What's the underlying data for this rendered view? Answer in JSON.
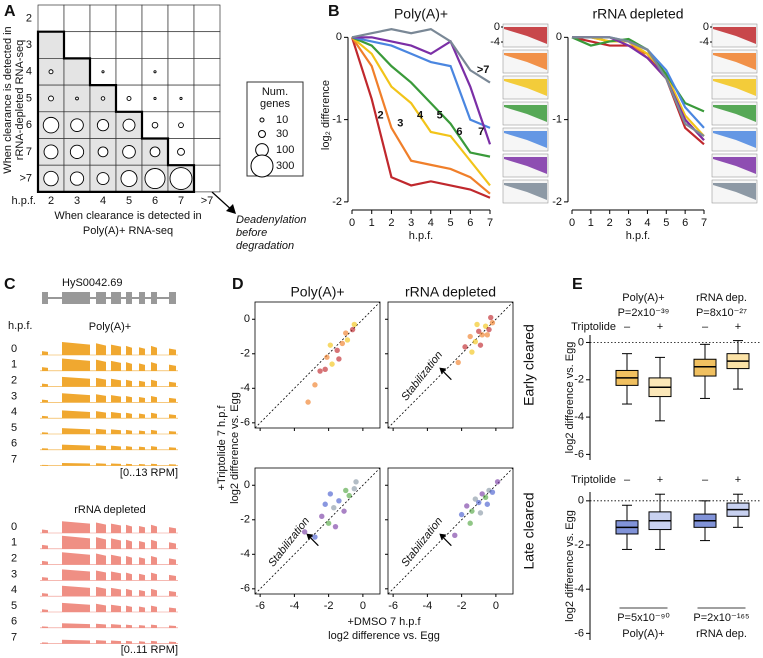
{
  "panel_a": {
    "letter": "A",
    "rows": [
      2,
      3,
      4,
      5,
      6,
      7,
      ">7"
    ],
    "cols": [
      2,
      3,
      4,
      5,
      6,
      7,
      ">7"
    ],
    "corner": "h.p.f.",
    "y_label": [
      "When clearance is detected in",
      "rRNA-depleted RNA-seq"
    ],
    "x_label": [
      "When clearance is detected in",
      "Poly(A)+ RNA-seq"
    ],
    "counts": [
      [
        null,
        null,
        null,
        null,
        null,
        null,
        null
      ],
      [
        null,
        null,
        null,
        null,
        null,
        null,
        null
      ],
      [
        10,
        null,
        3,
        null,
        3,
        null,
        null
      ],
      [
        15,
        5,
        8,
        10,
        3,
        3,
        null
      ],
      [
        150,
        100,
        80,
        90,
        20,
        15,
        null
      ],
      [
        120,
        110,
        60,
        100,
        60,
        30,
        null
      ],
      [
        130,
        110,
        90,
        160,
        250,
        300,
        null
      ]
    ],
    "legend_title": [
      "Num.",
      "genes"
    ],
    "legend_sizes": [
      10,
      30,
      100,
      300
    ],
    "annotation": [
      "Deadenylation",
      "before",
      "degradation"
    ]
  },
  "panel_b": {
    "letter": "B",
    "x_label": "h.p.f.",
    "y_label": "log₂ difference",
    "inset_ticks": [
      0,
      -4
    ],
    "charts": [
      {
        "title": "Poly(A)+",
        "x": [
          0,
          1,
          2,
          3,
          4,
          5,
          6,
          7
        ],
        "xlim": [
          0,
          7
        ],
        "xticks": [
          0,
          1,
          2,
          3,
          4,
          5,
          6,
          7
        ],
        "ylim": [
          -2.05,
          0.15
        ],
        "yticks": [
          0,
          -1,
          -2
        ],
        "series": [
          {
            "name": "2",
            "color": "#c0282d",
            "values": [
              0,
              -0.75,
              -1.7,
              -1.8,
              -1.75,
              -1.8,
              -1.85,
              -1.95
            ]
          },
          {
            "name": "3",
            "color": "#f07f2a",
            "values": [
              0,
              -0.35,
              -1.1,
              -1.5,
              -1.55,
              -1.6,
              -1.7,
              -1.9
            ]
          },
          {
            "name": "4",
            "color": "#f2c419",
            "values": [
              0,
              -0.2,
              -0.6,
              -0.8,
              -1.15,
              -1.2,
              -1.5,
              -1.8
            ]
          },
          {
            "name": "5",
            "color": "#3a9a3a",
            "values": [
              0,
              -0.1,
              -0.35,
              -0.55,
              -0.8,
              -1.05,
              -1.4,
              -1.45
            ]
          },
          {
            "name": "6",
            "color": "#4a86e0",
            "values": [
              0,
              -0.05,
              -0.1,
              -0.2,
              -0.3,
              -0.35,
              -1.0,
              -1.1
            ]
          },
          {
            "name": "7",
            "color": "#7b2fa6",
            "values": [
              0,
              0,
              -0.05,
              -0.1,
              -0.2,
              -0.05,
              -0.6,
              -1.3
            ]
          },
          {
            "name": ">7",
            "color": "#7a8896",
            "values": [
              0,
              0.05,
              0.1,
              0.05,
              0.1,
              -0.05,
              -0.4,
              -0.55
            ]
          }
        ]
      },
      {
        "title": "rRNA depleted",
        "x": [
          0,
          1,
          2,
          3,
          4,
          5,
          6,
          7
        ],
        "xlim": [
          0,
          7
        ],
        "xticks": [
          0,
          1,
          2,
          3,
          4,
          5,
          6,
          7
        ],
        "ylim": [
          -2.05,
          0.15
        ],
        "yticks": [
          0,
          -1,
          -2
        ],
        "series": [
          {
            "color": "#c0282d",
            "values": [
              0,
              -0.05,
              -0.1,
              -0.1,
              -0.2,
              -0.5,
              -1.1,
              -1.3
            ]
          },
          {
            "color": "#f07f2a",
            "values": [
              0,
              0,
              -0.05,
              -0.05,
              -0.25,
              -0.5,
              -1.0,
              -1.25
            ]
          },
          {
            "color": "#f2c419",
            "values": [
              0,
              0,
              -0.05,
              -0.05,
              -0.2,
              -0.45,
              -0.95,
              -1.2
            ]
          },
          {
            "color": "#3a9a3a",
            "values": [
              0,
              -0.1,
              -0.05,
              -0.02,
              -0.15,
              -0.45,
              -0.8,
              -0.9
            ]
          },
          {
            "color": "#4a86e0",
            "values": [
              0,
              0,
              0,
              -0.05,
              -0.15,
              -0.4,
              -0.85,
              -1.1
            ]
          },
          {
            "color": "#7b2fa6",
            "values": [
              0,
              0,
              0,
              -0.1,
              -0.25,
              -0.5,
              -1.0,
              -1.25
            ]
          },
          {
            "color": "#7a8896",
            "values": [
              0,
              0,
              0,
              -0.05,
              -0.15,
              -0.5,
              -1.05,
              -1.2
            ]
          }
        ]
      }
    ]
  },
  "panel_c": {
    "letter": "C",
    "gene": "HyS0042.69",
    "hpf_label": "h.p.f.",
    "tracks": [
      {
        "title": "Poly(A)+",
        "color": "#f0a830",
        "rows": [
          0,
          1,
          2,
          3,
          4,
          5,
          6,
          7
        ],
        "levels": [
          1,
          0.95,
          0.75,
          0.7,
          0.6,
          0.45,
          0.4,
          0.2
        ],
        "range": "[0..13 RPM]"
      },
      {
        "title": "rRNA depleted",
        "color": "#ef8f84",
        "rows": [
          0,
          1,
          2,
          3,
          4,
          5,
          6,
          7
        ],
        "levels": [
          0.9,
          1,
          0.95,
          0.85,
          0.8,
          0.7,
          0.35,
          0.3
        ],
        "range": "[0..11 RPM]"
      }
    ]
  },
  "panel_d": {
    "letter": "D",
    "titles": [
      "Poly(A)+",
      "rRNA depleted"
    ],
    "row_labels": [
      "Early cleared",
      "Late cleared"
    ],
    "x_label": [
      "+DMSO 7 h.p.f",
      "log2 difference vs. Egg"
    ],
    "y_label": [
      "+Triptolide 7 h.p.f",
      "log2 difference vs. Egg"
    ],
    "xlim": [
      -6.3,
      1
    ],
    "ylim": [
      -6.3,
      1
    ],
    "xticks": [
      -6,
      -4,
      -2,
      0
    ],
    "yticks": [
      -6,
      -4,
      -2,
      0
    ],
    "plots": [
      {
        "x": [
          -2.5,
          -2.1,
          -1.8,
          -1.5,
          -1.2,
          -0.9,
          -0.6,
          -2.8,
          -1.9,
          -1.4,
          -1.0,
          -0.5,
          -2.2,
          -3.2
        ],
        "y": [
          -3.0,
          -2.2,
          -2.6,
          -1.8,
          -1.4,
          -1.2,
          -0.6,
          -3.8,
          -1.5,
          -2.3,
          -0.8,
          -0.3,
          -2.9,
          -4.8
        ],
        "colors": [
          "#c0282d",
          "#f07f2a",
          "#f2c419",
          "#c0282d",
          "#f07f2a",
          "#f2c419",
          "#c0282d",
          "#f07f2a",
          "#f2c419",
          "#c0282d",
          "#f07f2a",
          "#f2c419",
          "#c0282d",
          "#f07f2a"
        ]
      },
      {
        "x": [
          -1.8,
          -1.5,
          -1.2,
          -1.0,
          -0.8,
          -0.6,
          -0.4,
          -0.2,
          -1.4,
          -0.9,
          -0.5,
          -1.1,
          -0.3,
          -2.2
        ],
        "y": [
          -1.6,
          -1.0,
          -1.3,
          -0.7,
          -0.9,
          -0.4,
          -0.6,
          -0.2,
          -1.9,
          -1.5,
          -0.9,
          -0.3,
          0.1,
          -2.5
        ],
        "colors": [
          "#c0282d",
          "#f07f2a",
          "#f2c419",
          "#c0282d",
          "#f07f2a",
          "#f2c419",
          "#c0282d",
          "#f07f2a",
          "#f2c419",
          "#c0282d",
          "#f07f2a",
          "#f2c419",
          "#c0282d",
          "#f07f2a"
        ],
        "annotation": "Stabilization"
      },
      {
        "x": [
          -2.8,
          -2.4,
          -2.0,
          -1.7,
          -1.4,
          -1.1,
          -0.8,
          -0.5,
          -2.2,
          -1.6,
          -1.0,
          -0.4,
          -1.9,
          -3.4
        ],
        "y": [
          -3.0,
          -1.8,
          -2.2,
          -1.3,
          -0.9,
          -1.5,
          -0.6,
          -0.2,
          -1.1,
          -2.4,
          -0.3,
          0.2,
          -0.5,
          -2.7
        ],
        "colors": [
          "#4a5fd0",
          "#7b3fa6",
          "#55a845",
          "#8a99a8",
          "#4a5fd0",
          "#7b3fa6",
          "#55a845",
          "#8a99a8",
          "#4a5fd0",
          "#7b3fa6",
          "#55a845",
          "#8a99a8",
          "#4a5fd0",
          "#7b3fa6"
        ],
        "annotation": "Stabilization"
      },
      {
        "x": [
          -2.0,
          -1.7,
          -1.4,
          -1.2,
          -1.0,
          -0.8,
          -0.6,
          -0.4,
          -0.2,
          0.1,
          -1.5,
          -0.9,
          -0.5,
          -2.4
        ],
        "y": [
          -1.7,
          -1.2,
          -1.5,
          -0.8,
          -1.0,
          -0.5,
          -0.7,
          -0.3,
          -0.4,
          0.2,
          -2.2,
          -1.6,
          -1.1,
          -2.9
        ],
        "colors": [
          "#4a5fd0",
          "#7b3fa6",
          "#55a845",
          "#8a99a8",
          "#4a5fd0",
          "#7b3fa6",
          "#55a845",
          "#8a99a8",
          "#4a5fd0",
          "#7b3fa6",
          "#55a845",
          "#8a99a8",
          "#4a5fd0",
          "#7b3fa6"
        ],
        "annotation": "Stabilization"
      }
    ]
  },
  "panel_e": {
    "letter": "E",
    "y_label": "log2 difference vs. Egg",
    "treatment_label": "Triptolide",
    "treatments": [
      "–",
      "+"
    ],
    "ylim": [
      -6.3,
      0.4
    ],
    "yticks": [
      0,
      -2,
      -4,
      -6
    ],
    "plots": [
      {
        "groups": [
          {
            "name": "Poly(A)+",
            "p": "P=2x10⁻³⁹"
          },
          {
            "name": "rRNA dep.",
            "p": "P=8x10⁻²⁷"
          }
        ],
        "boxes": [
          {
            "color": "#f0c060",
            "low": -3.3,
            "q1": -2.3,
            "median": -1.9,
            "q3": -1.5,
            "high": -0.6
          },
          {
            "color": "#fbe7b8",
            "low": -4.2,
            "q1": -2.9,
            "median": -2.4,
            "q3": -1.9,
            "high": -0.8
          },
          {
            "color": "#f0c060",
            "low": -3.0,
            "q1": -1.8,
            "median": -1.3,
            "q3": -0.9,
            "high": -0.1
          },
          {
            "color": "#fbe2a6",
            "low": -2.5,
            "q1": -1.4,
            "median": -1.0,
            "q3": -0.6,
            "high": 0.1
          }
        ]
      },
      {
        "groups": [
          {
            "name": "Poly(A)+",
            "p": "P=5x10⁻⁹⁰"
          },
          {
            "name": "rRNA dep.",
            "p": "P=2x10⁻¹⁶⁵"
          }
        ],
        "boxes": [
          {
            "color": "#8193d8",
            "low": -2.2,
            "q1": -1.5,
            "median": -1.2,
            "q3": -0.9,
            "high": -0.2
          },
          {
            "color": "#c8d1f0",
            "low": -2.2,
            "q1": -1.3,
            "median": -0.9,
            "q3": -0.5,
            "high": 0.3
          },
          {
            "color": "#8193d8",
            "low": -1.8,
            "q1": -1.2,
            "median": -0.9,
            "q3": -0.6,
            "high": 0.0
          },
          {
            "color": "#c8d1f0",
            "low": -1.2,
            "q1": -0.7,
            "median": -0.4,
            "q3": -0.1,
            "high": 0.3
          }
        ]
      }
    ]
  }
}
